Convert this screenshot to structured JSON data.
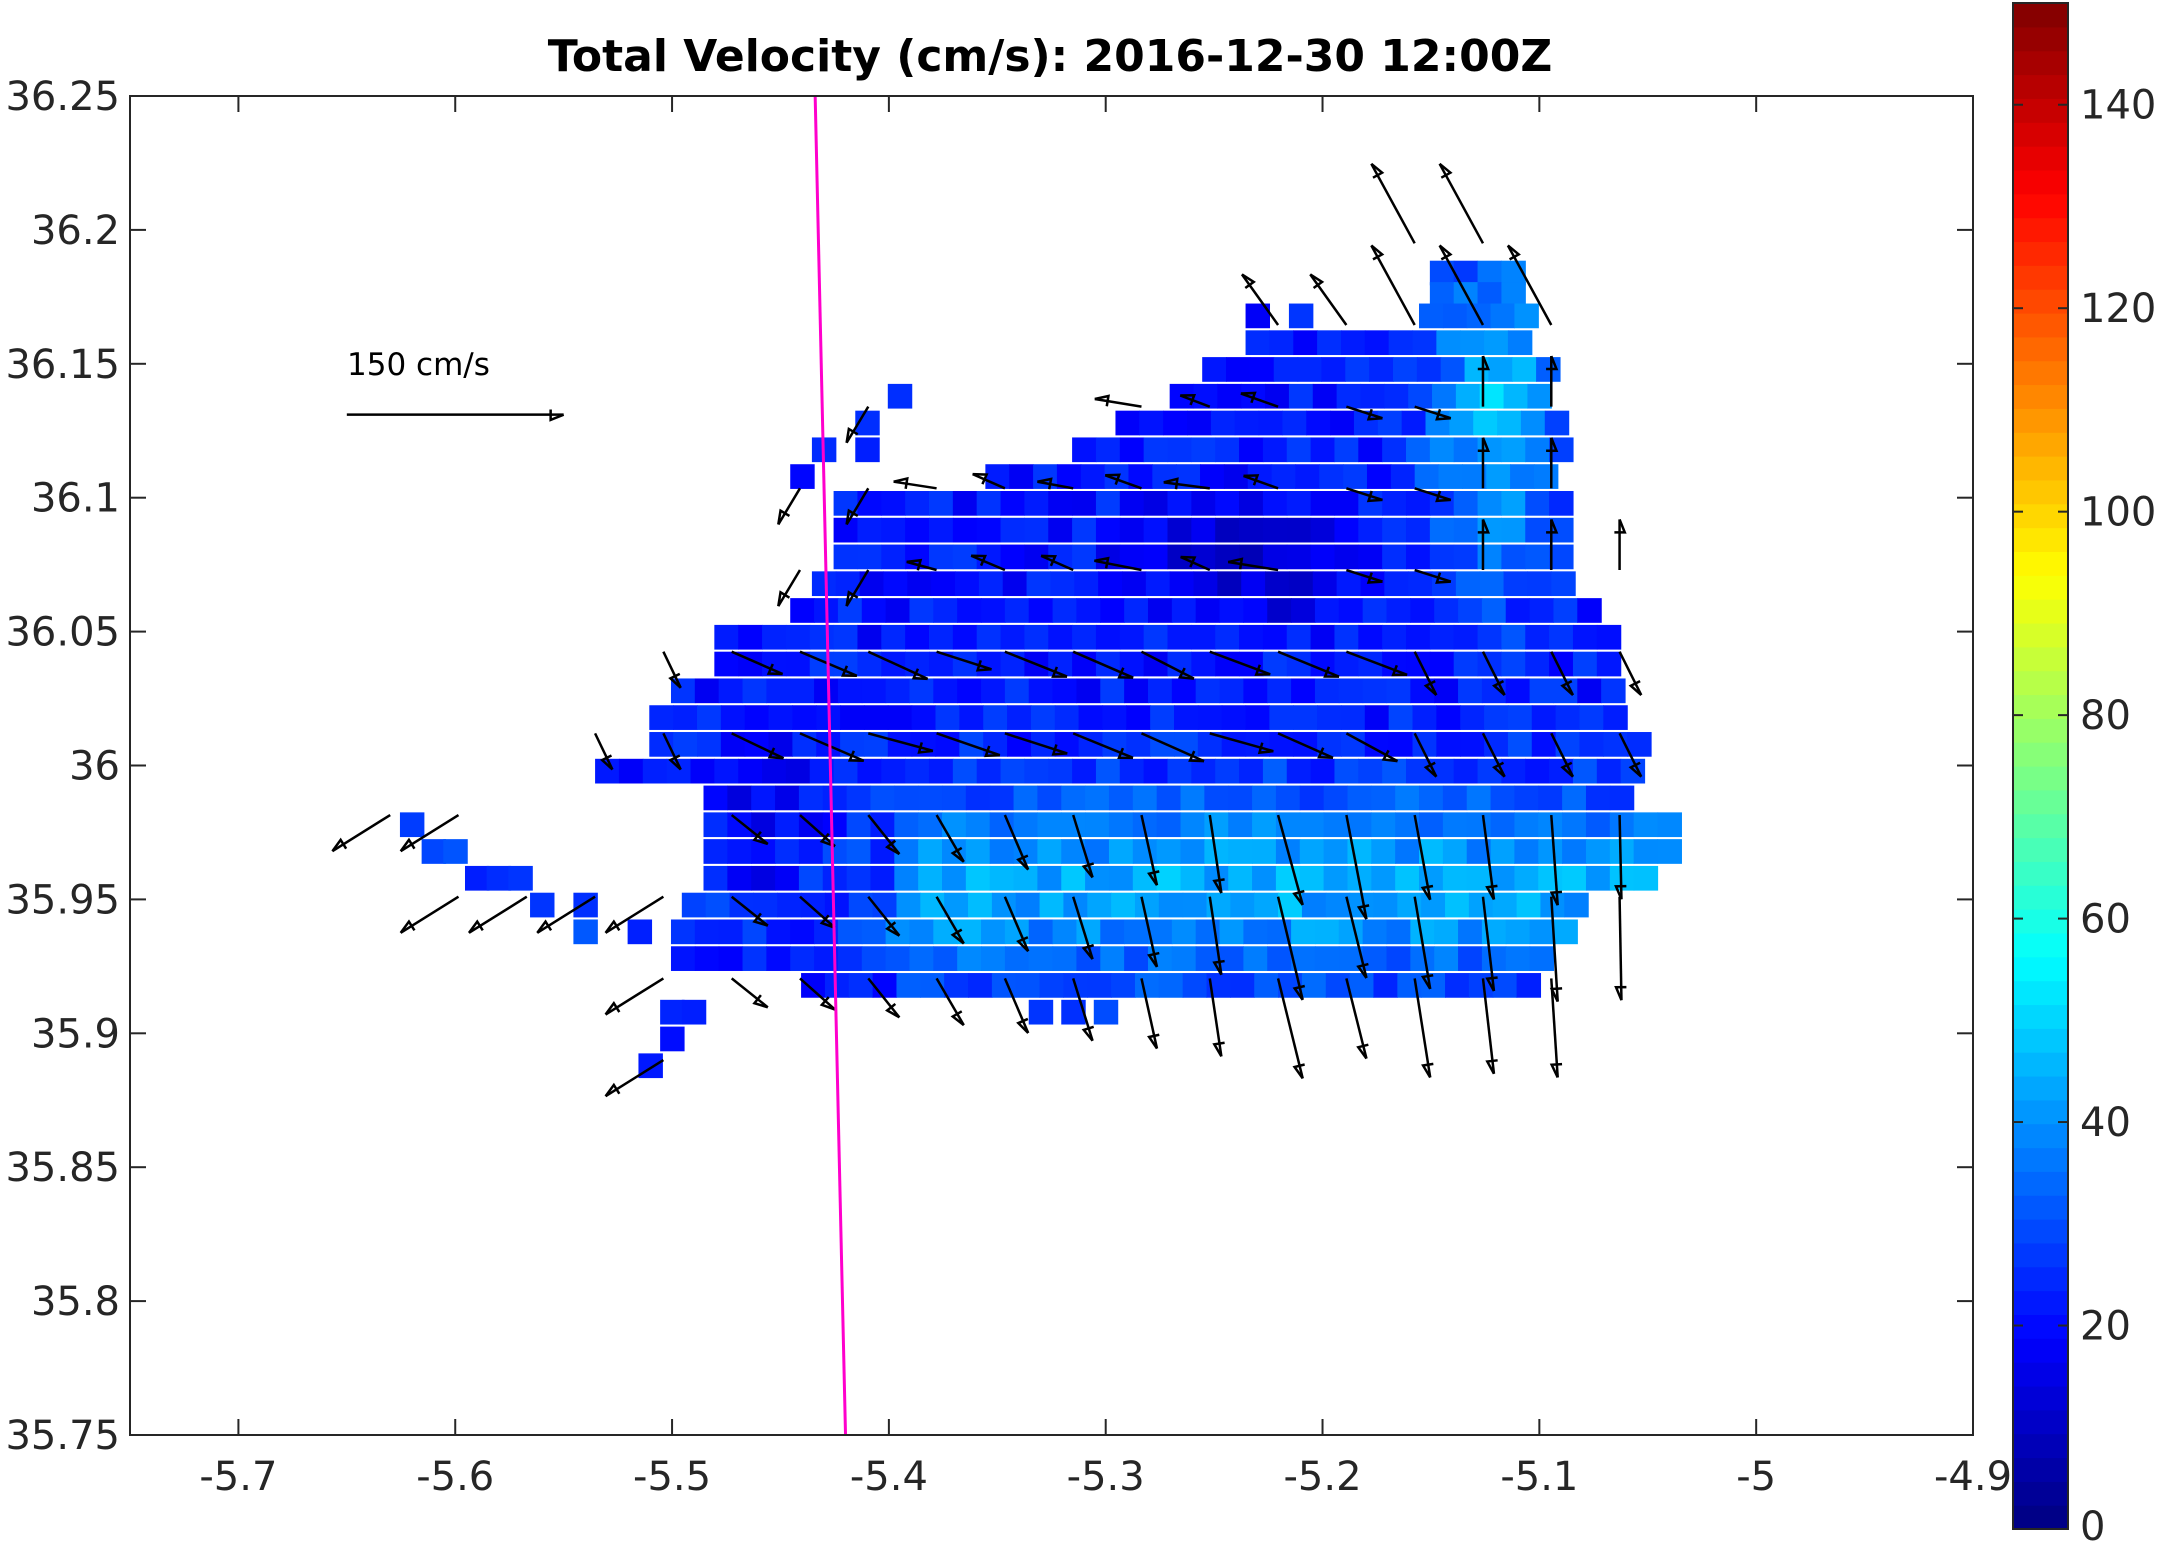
{
  "chart_data": {
    "type": "heatmap",
    "title": "Total Velocity (cm/s): 2016-12-30 12:00Z",
    "xlim": [
      -5.75,
      -4.9
    ],
    "ylim": [
      35.75,
      36.25
    ],
    "x_ticks": [
      -5.7,
      -5.6,
      -5.5,
      -5.4,
      -5.3,
      -5.2,
      -5.1,
      -5,
      -4.9
    ],
    "x_tick_labels": [
      "-5.7",
      "-5.6",
      "-5.5",
      "-5.4",
      "-5.3",
      "-5.2",
      "-5.1",
      "-5",
      "-4.9"
    ],
    "y_ticks": [
      35.75,
      35.8,
      35.85,
      35.9,
      35.95,
      36,
      36.05,
      36.1,
      36.15,
      36.2,
      36.25
    ],
    "y_tick_labels": [
      "35.75",
      "35.8",
      "35.85",
      "35.9",
      "35.95",
      "36",
      "36.05",
      "36.1",
      "36.15",
      "36.2",
      "36.25"
    ],
    "colorbar": {
      "range": [
        0,
        150
      ],
      "ticks": [
        0,
        20,
        40,
        60,
        80,
        100,
        120,
        140
      ],
      "tick_labels": [
        "0",
        "20",
        "40",
        "60",
        "80",
        "100",
        "120",
        "140"
      ],
      "colormap": "jet"
    },
    "scale_arrow": {
      "label": "150 cm/s",
      "speed": 150
    },
    "grid": false,
    "reference_line": {
      "color": "#ff00cc",
      "points": [
        [
          -5.434,
          36.25
        ],
        [
          -5.42,
          35.75
        ]
      ]
    }
  }
}
